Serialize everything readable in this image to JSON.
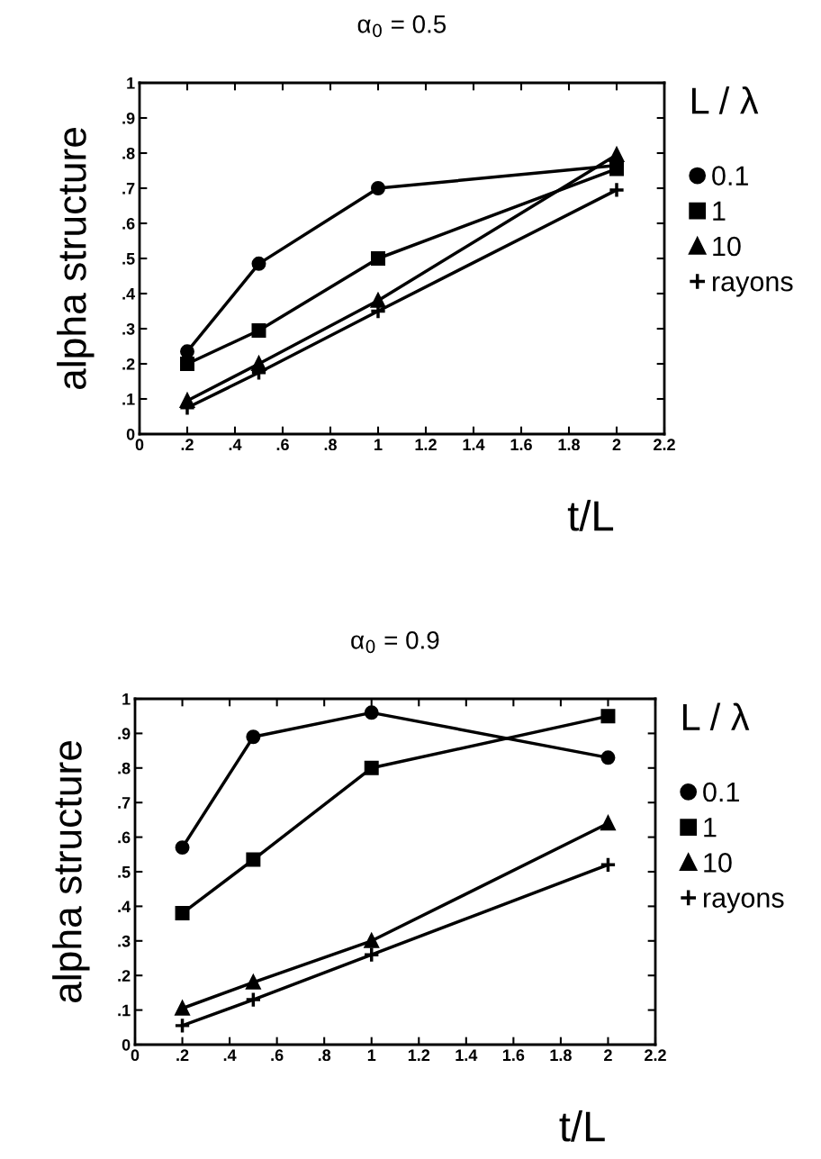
{
  "chart_data": [
    {
      "type": "line",
      "title": "α$_{0}$ = 0.5",
      "xlabel": "t/L",
      "ylabel": "alpha structure",
      "legend_title": "L / λ",
      "legend": "right",
      "grid": false,
      "line_style": "solid",
      "x": [
        0.2,
        0.5,
        1,
        2
      ],
      "xlim": [
        0,
        2.2
      ],
      "ylim": [
        0,
        1
      ],
      "xticks": [
        0,
        {
          "value": 0.2,
          "label": ".2"
        },
        {
          "value": 0.4,
          "label": ".4"
        },
        {
          "value": 0.6,
          "label": ".6"
        },
        {
          "value": 0.8,
          "label": ".8"
        },
        1,
        1.2,
        1.4,
        1.6,
        1.8,
        2,
        2.2
      ],
      "yticks": [
        0,
        {
          "value": 0.1,
          "label": ".1"
        },
        {
          "value": 0.2,
          "label": ".2"
        },
        {
          "value": 0.3,
          "label": ".3"
        },
        {
          "value": 0.4,
          "label": ".4"
        },
        {
          "value": 0.5,
          "label": ".5"
        },
        {
          "value": 0.6,
          "label": ".6"
        },
        {
          "value": 0.7,
          "label": ".7"
        },
        {
          "value": 0.8,
          "label": ".8"
        },
        {
          "value": 0.9,
          "label": ".9"
        },
        1
      ],
      "series": [
        {
          "name": "0.1",
          "color": "#000000",
          "marker": "circle",
          "values": [
            0.235,
            0.485,
            0.7,
            0.765
          ]
        },
        {
          "name": "1",
          "color": "#000000",
          "marker": "square",
          "values": [
            0.2,
            0.295,
            0.5,
            0.755
          ]
        },
        {
          "name": "10",
          "color": "#000000",
          "marker": "triangle",
          "values": [
            0.095,
            0.2,
            0.38,
            0.795
          ]
        },
        {
          "name": "rayons",
          "color": "#000000",
          "marker": "cross",
          "values": [
            0.075,
            0.175,
            0.35,
            0.695
          ]
        }
      ]
    },
    {
      "type": "line",
      "title": "α$_{0}$ = 0.9",
      "xlabel": "t/L",
      "ylabel": "alpha structure",
      "legend_title": "L / λ",
      "legend": "right",
      "grid": false,
      "line_style": "solid",
      "x": [
        0.2,
        0.5,
        1,
        2
      ],
      "xlim": [
        0,
        2.2
      ],
      "ylim": [
        0,
        1
      ],
      "xticks": [
        0,
        {
          "value": 0.2,
          "label": ".2"
        },
        {
          "value": 0.4,
          "label": ".4"
        },
        {
          "value": 0.6,
          "label": ".6"
        },
        {
          "value": 0.8,
          "label": ".8"
        },
        1,
        1.2,
        1.4,
        1.6,
        1.8,
        2,
        2.2
      ],
      "yticks": [
        0,
        {
          "value": 0.1,
          "label": ".1"
        },
        {
          "value": 0.2,
          "label": ".2"
        },
        {
          "value": 0.3,
          "label": ".3"
        },
        {
          "value": 0.4,
          "label": ".4"
        },
        {
          "value": 0.5,
          "label": ".5"
        },
        {
          "value": 0.6,
          "label": ".6"
        },
        {
          "value": 0.7,
          "label": ".7"
        },
        {
          "value": 0.8,
          "label": ".8"
        },
        {
          "value": 0.9,
          "label": ".9"
        },
        1
      ],
      "series": [
        {
          "name": "0.1",
          "color": "#000000",
          "marker": "circle",
          "values": [
            0.57,
            0.89,
            0.96,
            0.83
          ]
        },
        {
          "name": "1",
          "color": "#000000",
          "marker": "square",
          "values": [
            0.38,
            0.535,
            0.8,
            0.95
          ]
        },
        {
          "name": "10",
          "color": "#000000",
          "marker": "triangle",
          "values": [
            0.105,
            0.18,
            0.3,
            0.64
          ]
        },
        {
          "name": "rayons",
          "color": "#000000",
          "marker": "cross",
          "values": [
            0.055,
            0.13,
            0.26,
            0.52
          ]
        }
      ]
    }
  ]
}
